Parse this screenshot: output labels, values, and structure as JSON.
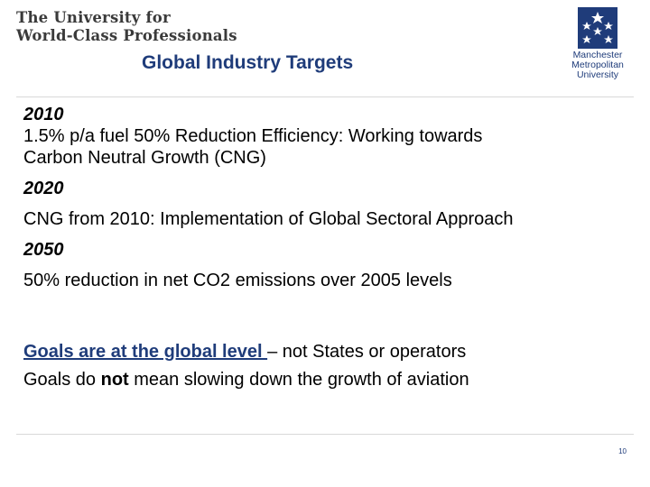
{
  "header": {
    "tagline_line1": "The University for",
    "tagline_line2": "World-Class Professionals",
    "title": "Global Industry Targets",
    "logo": {
      "line1": "Manchester",
      "line2": "Metropolitan",
      "line3": "University",
      "color": "#1f3c7a"
    }
  },
  "targets": [
    {
      "year": "2010",
      "text_line1": "1.5% p/a fuel 50% Reduction  Efficiency: Working towards",
      "text_line2": "Carbon Neutral Growth (CNG)"
    },
    {
      "year": "2020",
      "text_line1": "CNG from 2010: Implementation of Global Sectoral Approach"
    },
    {
      "year": "2050",
      "text_line1": "50% reduction in net CO2 emissions over 2005 levels"
    }
  ],
  "goals": {
    "line1_underlined": "Goals are at the global level ",
    "line1_rest": "– not States or operators",
    "line2_before": "Goals do ",
    "line2_bold": "not",
    "line2_after": " mean slowing down the growth of aviation"
  },
  "footer": {
    "page_number": "10"
  },
  "colors": {
    "title": "#1f3c7a",
    "tagline": "#3a3a3a"
  }
}
